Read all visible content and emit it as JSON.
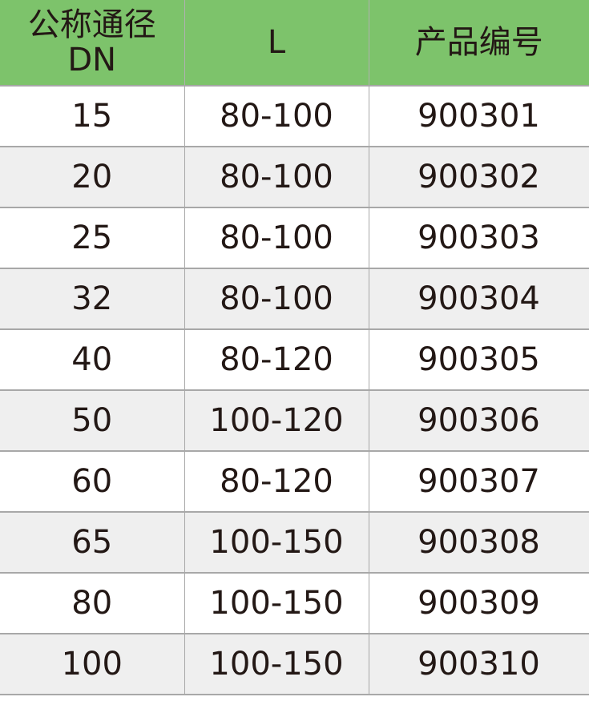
{
  "table": {
    "headers": [
      {
        "line1": "公称通径",
        "line2": "DN"
      },
      {
        "line1": "L",
        "line2": ""
      },
      {
        "line1": "产品编号",
        "line2": ""
      }
    ],
    "rows": [
      [
        "15",
        "80-100",
        "900301"
      ],
      [
        "20",
        "80-100",
        "900302"
      ],
      [
        "25",
        "80-100",
        "900303"
      ],
      [
        "32",
        "80-100",
        "900304"
      ],
      [
        "40",
        "80-120",
        "900305"
      ],
      [
        "50",
        "100-120",
        "900306"
      ],
      [
        "60",
        "80-120",
        "900307"
      ],
      [
        "65",
        "100-150",
        "900308"
      ],
      [
        "80",
        "100-150",
        "900309"
      ],
      [
        "100",
        "100-150",
        "900310"
      ]
    ]
  },
  "colors": {
    "header_bg": "#7dc36b",
    "alt_row_bg": "#efefef",
    "text": "#231815"
  }
}
